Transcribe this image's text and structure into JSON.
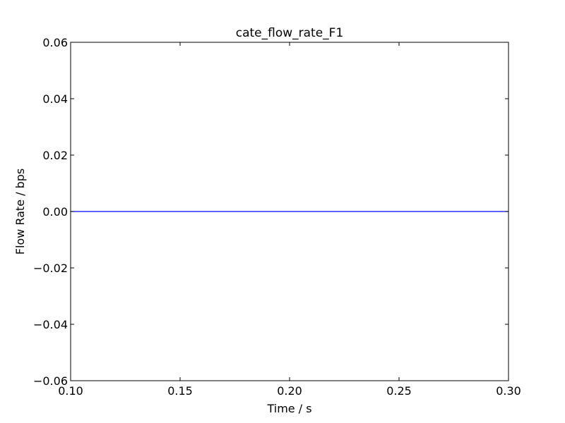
{
  "chart_data": {
    "type": "line",
    "title": "cate_flow_rate_F1",
    "xlabel": "Time / s",
    "ylabel": "Flow Rate / bps",
    "xlim": [
      0.1,
      0.3
    ],
    "ylim": [
      -0.06,
      0.06
    ],
    "xticks": [
      0.1,
      0.15,
      0.2,
      0.25,
      0.3
    ],
    "yticks": [
      -0.06,
      -0.04,
      -0.02,
      0.0,
      0.02,
      0.04,
      0.06
    ],
    "xtick_labels": [
      "0.10",
      "0.15",
      "0.20",
      "0.25",
      "0.30"
    ],
    "ytick_labels": [
      "−0.06",
      "−0.04",
      "−0.02",
      "0.00",
      "0.02",
      "0.04",
      "0.06"
    ],
    "grid": false,
    "legend": "none",
    "series": [
      {
        "color": "#0000ff",
        "x": [
          0.1,
          0.15,
          0.2,
          0.25,
          0.3
        ],
        "y": [
          0.0,
          0.0,
          0.0,
          0.0,
          0.0
        ]
      }
    ]
  }
}
